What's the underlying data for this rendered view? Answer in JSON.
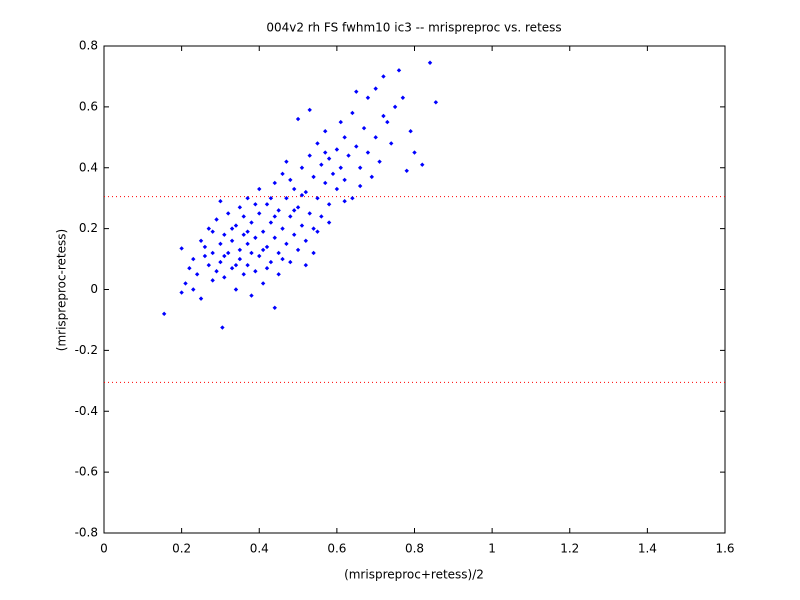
{
  "chart_data": {
    "type": "scatter",
    "title": "004v2 rh FS fwhm10 ic3 -- mrispreproc vs. retess",
    "xlabel": "(mrispreproc+retess)/2",
    "ylabel": "(mrispreproc-retess)",
    "xlim": [
      0,
      1.6
    ],
    "ylim": [
      -0.8,
      0.8
    ],
    "xticks": [
      0,
      0.2,
      0.4,
      0.6,
      0.8,
      1,
      1.2,
      1.4,
      1.6
    ],
    "yticks": [
      -0.8,
      -0.6,
      -0.4,
      -0.2,
      0,
      0.2,
      0.4,
      0.6,
      0.8
    ],
    "grid": false,
    "color": "#0000ff",
    "reference_lines": [
      0.305,
      -0.305
    ],
    "reference_color": "#ff0000",
    "x": [
      0.155,
      0.2,
      0.2,
      0.21,
      0.22,
      0.23,
      0.24,
      0.25,
      0.25,
      0.26,
      0.27,
      0.27,
      0.28,
      0.28,
      0.29,
      0.29,
      0.3,
      0.3,
      0.3,
      0.305,
      0.31,
      0.31,
      0.32,
      0.32,
      0.33,
      0.33,
      0.34,
      0.34,
      0.35,
      0.35,
      0.35,
      0.36,
      0.36,
      0.37,
      0.37,
      0.37,
      0.38,
      0.38,
      0.38,
      0.39,
      0.39,
      0.4,
      0.4,
      0.4,
      0.41,
      0.41,
      0.42,
      0.42,
      0.43,
      0.43,
      0.44,
      0.44,
      0.44,
      0.45,
      0.45,
      0.45,
      0.46,
      0.46,
      0.47,
      0.47,
      0.48,
      0.48,
      0.49,
      0.49,
      0.5,
      0.5,
      0.5,
      0.51,
      0.51,
      0.52,
      0.52,
      0.53,
      0.53,
      0.53,
      0.54,
      0.54,
      0.55,
      0.55,
      0.56,
      0.56,
      0.57,
      0.57,
      0.58,
      0.58,
      0.59,
      0.6,
      0.6,
      0.61,
      0.61,
      0.62,
      0.62,
      0.63,
      0.64,
      0.64,
      0.65,
      0.65,
      0.66,
      0.67,
      0.68,
      0.68,
      0.69,
      0.7,
      0.7,
      0.71,
      0.72,
      0.72,
      0.73,
      0.74,
      0.75,
      0.76,
      0.77,
      0.78,
      0.79,
      0.8,
      0.82,
      0.84,
      0.855,
      0.23,
      0.26,
      0.28,
      0.33,
      0.36,
      0.39,
      0.42,
      0.46,
      0.48,
      0.52,
      0.55,
      0.58,
      0.47,
      0.43,
      0.62,
      0.66,
      0.31,
      0.34,
      0.37,
      0.41,
      0.44,
      0.49,
      0.51,
      0.54,
      0.57
    ],
    "values": [
      -0.08,
      -0.01,
      0.135,
      0.02,
      0.07,
      0.1,
      0.05,
      0.16,
      -0.03,
      0.11,
      0.2,
      0.08,
      0.12,
      0.03,
      0.06,
      0.23,
      0.29,
      0.15,
      0.09,
      -0.125,
      0.18,
      0.04,
      0.12,
      0.25,
      0.07,
      0.16,
      0.21,
      0.0,
      0.13,
      0.27,
      0.1,
      0.05,
      0.18,
      0.15,
      0.3,
      0.08,
      0.22,
      0.12,
      -0.02,
      0.17,
      0.06,
      0.25,
      0.11,
      0.33,
      0.19,
      0.02,
      0.14,
      0.28,
      0.09,
      0.22,
      -0.06,
      0.35,
      0.17,
      0.26,
      0.12,
      0.05,
      0.2,
      0.38,
      0.15,
      0.3,
      0.24,
      0.09,
      0.33,
      0.18,
      0.56,
      0.27,
      0.13,
      0.4,
      0.21,
      0.32,
      0.16,
      0.59,
      0.44,
      0.25,
      0.37,
      0.2,
      0.3,
      0.48,
      0.41,
      0.24,
      0.35,
      0.52,
      0.43,
      0.28,
      0.38,
      0.46,
      0.33,
      0.55,
      0.4,
      0.5,
      0.36,
      0.44,
      0.58,
      0.3,
      0.65,
      0.47,
      0.4,
      0.53,
      0.63,
      0.45,
      0.37,
      0.66,
      0.5,
      0.42,
      0.7,
      0.57,
      0.55,
      0.48,
      0.6,
      0.72,
      0.63,
      0.39,
      0.52,
      0.45,
      0.41,
      0.745,
      0.615,
      0.0,
      0.14,
      0.19,
      0.2,
      0.24,
      0.28,
      0.07,
      0.1,
      0.36,
      0.08,
      0.19,
      0.22,
      0.42,
      0.3,
      0.29,
      0.34,
      0.11,
      0.08,
      0.19,
      0.13,
      0.24,
      0.26,
      0.31,
      0.12,
      0.45
    ]
  }
}
